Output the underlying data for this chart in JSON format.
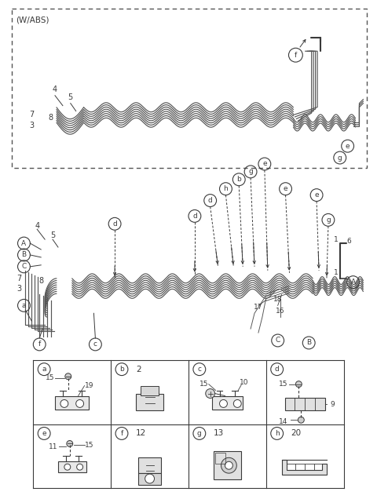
{
  "bg_color": "#ffffff",
  "line_color": "#3a3a3a",
  "fig_width": 4.8,
  "fig_height": 6.36,
  "dpi": 100,
  "wabs_label": "(W/ABS)",
  "table_row1": [
    [
      "a",
      ""
    ],
    [
      "b",
      "2"
    ],
    [
      "c",
      ""
    ],
    [
      "d",
      ""
    ]
  ],
  "table_row2": [
    [
      "e",
      ""
    ],
    [
      "f",
      "12"
    ],
    [
      "g",
      "13"
    ],
    [
      "h",
      "20"
    ]
  ]
}
